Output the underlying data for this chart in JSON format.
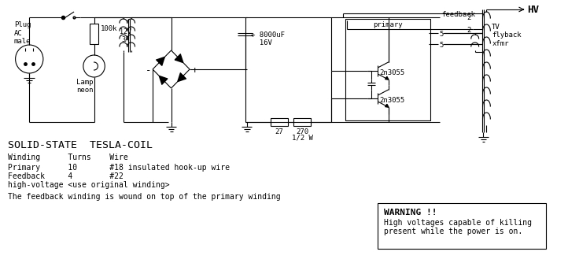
{
  "bg_color": "#ffffff",
  "line_color": "#000000",
  "font_family": "monospace",
  "title_text": "SOLID-STATE  TESLA-COIL",
  "winding_header": "Winding      Turns    Wire",
  "winding_rows": [
    "Primary      10       #18 insulated hook-up wire",
    "Feedback     4        #22",
    "high-voltage <use original winding>"
  ],
  "footer_text": "The feedback winding is wound on top of the primary winding",
  "warning_title": "WARNING !!",
  "warning_line1": "High voltages capable of killing",
  "warning_line2": "present while the power is on."
}
